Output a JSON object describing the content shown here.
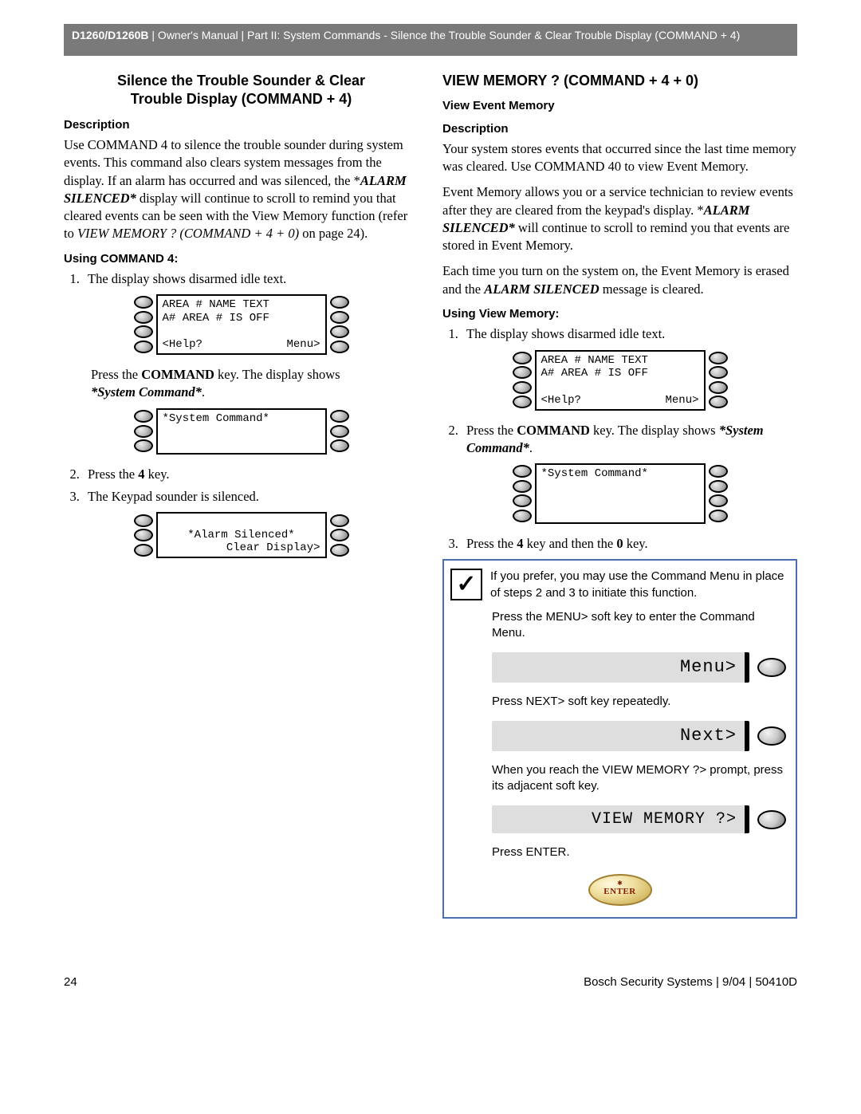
{
  "header": {
    "product": "D1260/D1260B",
    "rest": " | Owner's Manual | Part II: System Commands - Silence the Trouble Sounder & Clear Trouble Display (COMMAND + 4)"
  },
  "left": {
    "title_line1": "Silence the Trouble Sounder & Clear",
    "title_line2": "Trouble Display (COMMAND + 4)",
    "desc_h": "Description",
    "desc_p_a": "Use COMMAND 4 to silence the trouble sounder during system events. This command also clears system messages from the display. If an alarm has occurred and was silenced, the *",
    "desc_p_b": "ALARM SILENCED*",
    "desc_p_c": " display will continue to scroll to remind you that cleared events can be seen with the View Memory function (refer to ",
    "desc_p_d": "VIEW MEMORY ? (COMMAND + 4 + 0)",
    "desc_p_e": " on page 24).",
    "using_h": "Using COMMAND 4:",
    "step1": "The display shows disarmed idle text.",
    "kp1_line1": "AREA # NAME TEXT",
    "kp1_line2": "A# AREA # IS OFF",
    "kp1_help": "<Help?",
    "kp1_menu": "Menu>",
    "after_kp1_a": "Press the ",
    "after_kp1_b": "COMMAND",
    "after_kp1_c": " key. The display shows ",
    "after_kp1_d": "*System Command*",
    "after_kp1_e": ".",
    "kp2_line1": "*System Command*",
    "step2_a": "Press the ",
    "step2_b": "4",
    "step2_c": " key.",
    "step3": "The Keypad sounder is silenced.",
    "kp3_line2": "*Alarm Silenced*",
    "kp3_clear": "Clear Display>"
  },
  "right": {
    "title": "VIEW MEMORY ? (COMMAND + 4 + 0)",
    "sub_h": "View Event Memory",
    "desc_h": "Description",
    "p1": "Your system stores events that occurred since the last time memory was cleared. Use COMMAND 40 to view Event Memory.",
    "p2_a": "Event Memory allows you or a service technician to review events after they are cleared from the keypad's display. *",
    "p2_b": "ALARM SILENCED*",
    "p2_c": " will continue to scroll to remind you that events are stored in Event Memory.",
    "p3_a": "Each time you turn on the system on, the Event Memory is erased and the ",
    "p3_b": "ALARM SILENCED",
    "p3_c": " message is cleared.",
    "using_h": "Using View Memory:",
    "step1": "The display shows disarmed idle text.",
    "kp1_line1": "AREA # NAME TEXT",
    "kp1_line2": "A# AREA # IS OFF",
    "kp1_help": "<Help?",
    "kp1_menu": "Menu>",
    "step2_a": "Press the ",
    "step2_b": "COMMAND",
    "step2_c": " key. The display shows ",
    "step2_d": "*System Command*",
    "step2_e": ".",
    "kp2_line1": "*System Command*",
    "step3_a": "Press the ",
    "step3_b": "4",
    "step3_c": " key and then the ",
    "step3_d": "0",
    "step3_e": " key.",
    "tip1": "If you prefer, you may use the Command Menu in place of steps 2 and 3 to initiate this function.",
    "tip2": "Press the MENU> soft key to enter the Command Menu.",
    "soft1": "Menu>",
    "tip3": "Press NEXT> soft key repeatedly.",
    "soft2": "Next>",
    "tip4": "When you reach the VIEW MEMORY ?> prompt, press its adjacent soft key.",
    "soft3": "VIEW MEMORY ?>",
    "tip5": "Press ENTER.",
    "enter_label": "ENTER"
  },
  "footer": {
    "page": "24",
    "right": "Bosch Security Systems | 9/04 | 50410D"
  },
  "colors": {
    "header_bg": "#7a7a7a",
    "tip_border": "#4a6fb0",
    "softkey_bg": "#dedede"
  }
}
